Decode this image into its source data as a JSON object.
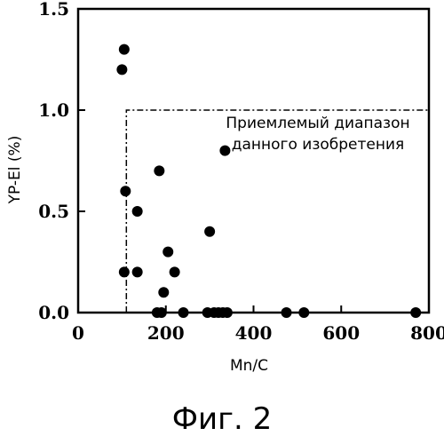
{
  "figure_caption": "Фиг. 2",
  "chart_data": {
    "type": "scatter",
    "xlabel": "Mn/C",
    "ylabel": "YP-El (%)",
    "xlim": [
      0,
      800
    ],
    "ylim": [
      0,
      1.5
    ],
    "x_ticks": [
      0,
      200,
      400,
      600,
      800
    ],
    "x_tick_labels": [
      "0",
      "200",
      "400",
      "600",
      "800"
    ],
    "y_ticks": [
      0,
      0.5,
      1.0,
      1.5
    ],
    "y_tick_labels": [
      "0.0",
      "0.5",
      "1.0",
      "1.5"
    ],
    "grid": false,
    "points": [
      {
        "x": 100,
        "y": 1.2
      },
      {
        "x": 105,
        "y": 1.3
      },
      {
        "x": 108,
        "y": 0.6
      },
      {
        "x": 105,
        "y": 0.2
      },
      {
        "x": 135,
        "y": 0.5
      },
      {
        "x": 135,
        "y": 0.2
      },
      {
        "x": 185,
        "y": 0.7
      },
      {
        "x": 180,
        "y": 0.0
      },
      {
        "x": 190,
        "y": 0.0
      },
      {
        "x": 195,
        "y": 0.1
      },
      {
        "x": 205,
        "y": 0.3
      },
      {
        "x": 220,
        "y": 0.2
      },
      {
        "x": 240,
        "y": 0.0
      },
      {
        "x": 295,
        "y": 0.0
      },
      {
        "x": 300,
        "y": 0.4
      },
      {
        "x": 310,
        "y": 0.0
      },
      {
        "x": 320,
        "y": 0.0
      },
      {
        "x": 330,
        "y": 0.0
      },
      {
        "x": 335,
        "y": 0.8
      },
      {
        "x": 340,
        "y": 0.0
      },
      {
        "x": 475,
        "y": 0.0
      },
      {
        "x": 515,
        "y": 0.0
      },
      {
        "x": 770,
        "y": 0.0
      }
    ],
    "acceptable_range": {
      "x_min": 110,
      "y_max": 1.0,
      "label_lines": [
        "Приемлемый диапазон",
        "данного изобретения"
      ]
    }
  }
}
